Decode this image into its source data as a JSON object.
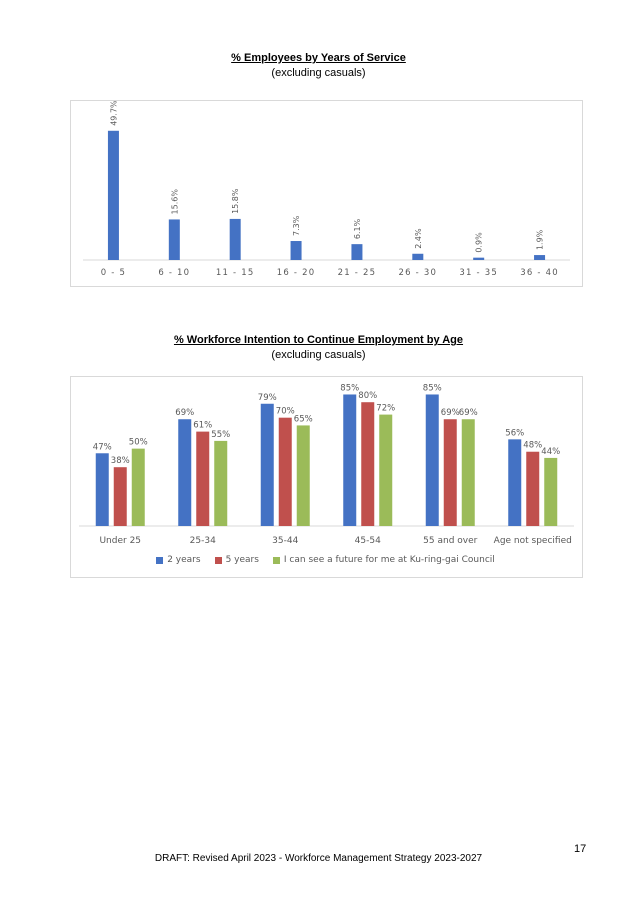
{
  "chart_data": [
    {
      "type": "bar",
      "title": "% Employees by Years of Service",
      "subtitle": "(excluding casuals)",
      "categories": [
        "0 - 5",
        "6 - 10",
        "11 - 15",
        "16 - 20",
        "21 - 25",
        "26 - 30",
        "31 - 35",
        "36 - 40"
      ],
      "values": [
        49.7,
        15.6,
        15.8,
        7.3,
        6.1,
        2.4,
        0.9,
        1.9
      ],
      "value_labels": [
        "49.7%",
        "15.6%",
        "15.8%",
        "7.3%",
        "6.1%",
        "2.4%",
        "0.9%",
        "1.9%"
      ],
      "ylim": [
        0,
        55
      ],
      "grid": false,
      "legend": "none",
      "color": "#4472c4"
    },
    {
      "type": "bar",
      "title": "% Workforce Intention to Continue Employment by Age",
      "subtitle": "(excluding casuals)",
      "categories": [
        "Under 25",
        "25-34",
        "35-44",
        "45-54",
        "55 and over",
        "Age not specified"
      ],
      "series": [
        {
          "name": "2 years",
          "color": "#4472c4",
          "values": [
            47,
            69,
            79,
            85,
            85,
            56
          ],
          "labels": [
            "47%",
            "69%",
            "79%",
            "85%",
            "85%",
            "56%"
          ]
        },
        {
          "name": "5 years",
          "color": "#c0504d",
          "values": [
            38,
            61,
            70,
            80,
            69,
            48
          ],
          "labels": [
            "38%",
            "61%",
            "70%",
            "80%",
            "69%",
            "48%"
          ]
        },
        {
          "name": "I can see a future for me at Ku-ring-gai Council",
          "color": "#9bbb59",
          "values": [
            50,
            55,
            65,
            72,
            69,
            44
          ],
          "labels": [
            "50%",
            "55%",
            "65%",
            "72%",
            "69%",
            "44%"
          ]
        }
      ],
      "ylim": [
        0,
        95
      ],
      "grid": false,
      "legend": "bottom"
    }
  ],
  "footer": {
    "page_number": "17",
    "text": "DRAFT: Revised April 2023 - Workforce Management Strategy 2023-2027"
  }
}
